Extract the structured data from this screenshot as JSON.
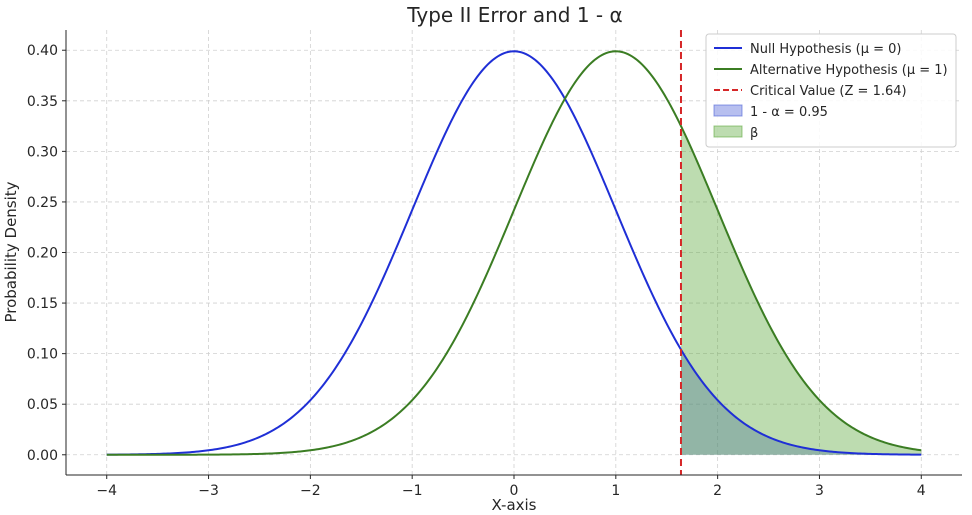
{
  "chart_data": {
    "type": "line",
    "title": "Type II Error and 1 - α",
    "xlabel": "X-axis",
    "ylabel": "Probability Density",
    "xlim": [
      -4.4,
      4.4
    ],
    "ylim": [
      -0.02,
      0.42
    ],
    "xticks": [
      -4,
      -3,
      -2,
      -1,
      0,
      1,
      2,
      3,
      4
    ],
    "xtick_labels": [
      "−4",
      "−3",
      "−2",
      "−1",
      "0",
      "1",
      "2",
      "3",
      "4"
    ],
    "yticks": [
      0.0,
      0.05,
      0.1,
      0.15,
      0.2,
      0.25,
      0.3,
      0.35,
      0.4
    ],
    "ytick_labels": [
      "0.00",
      "0.05",
      "0.10",
      "0.15",
      "0.20",
      "0.25",
      "0.30",
      "0.35",
      "0.40"
    ],
    "grid": true,
    "legend_position": "top-right",
    "x_range": [
      -4,
      4
    ],
    "critical_value": 1.64,
    "series": [
      {
        "name": "Null Hypothesis (μ = 0)",
        "kind": "normal_pdf",
        "mean": 0,
        "sd": 1,
        "color": "#1f2fd6"
      },
      {
        "name": "Alternative Hypothesis (μ = 1)",
        "kind": "normal_pdf",
        "mean": 1,
        "sd": 1,
        "color": "#3b7d23"
      }
    ],
    "critical_line": {
      "name": "Critical Value (Z = 1.64)",
      "color": "#d62728"
    },
    "shaded_regions": [
      {
        "name": "1 - α = 0.95",
        "under": "Null Hypothesis (μ = 0)",
        "from": 1.64,
        "to": 4,
        "color": "#4a5fd6"
      },
      {
        "name": "β",
        "under": "Alternative Hypothesis (μ = 1)",
        "from": 1.64,
        "to": 4,
        "color": "#5aa83a"
      }
    ]
  },
  "colors": {
    "null": "#1f2fd6",
    "alt": "#3b7d23",
    "critical": "#d62728",
    "grid": "#d0d0d0"
  }
}
